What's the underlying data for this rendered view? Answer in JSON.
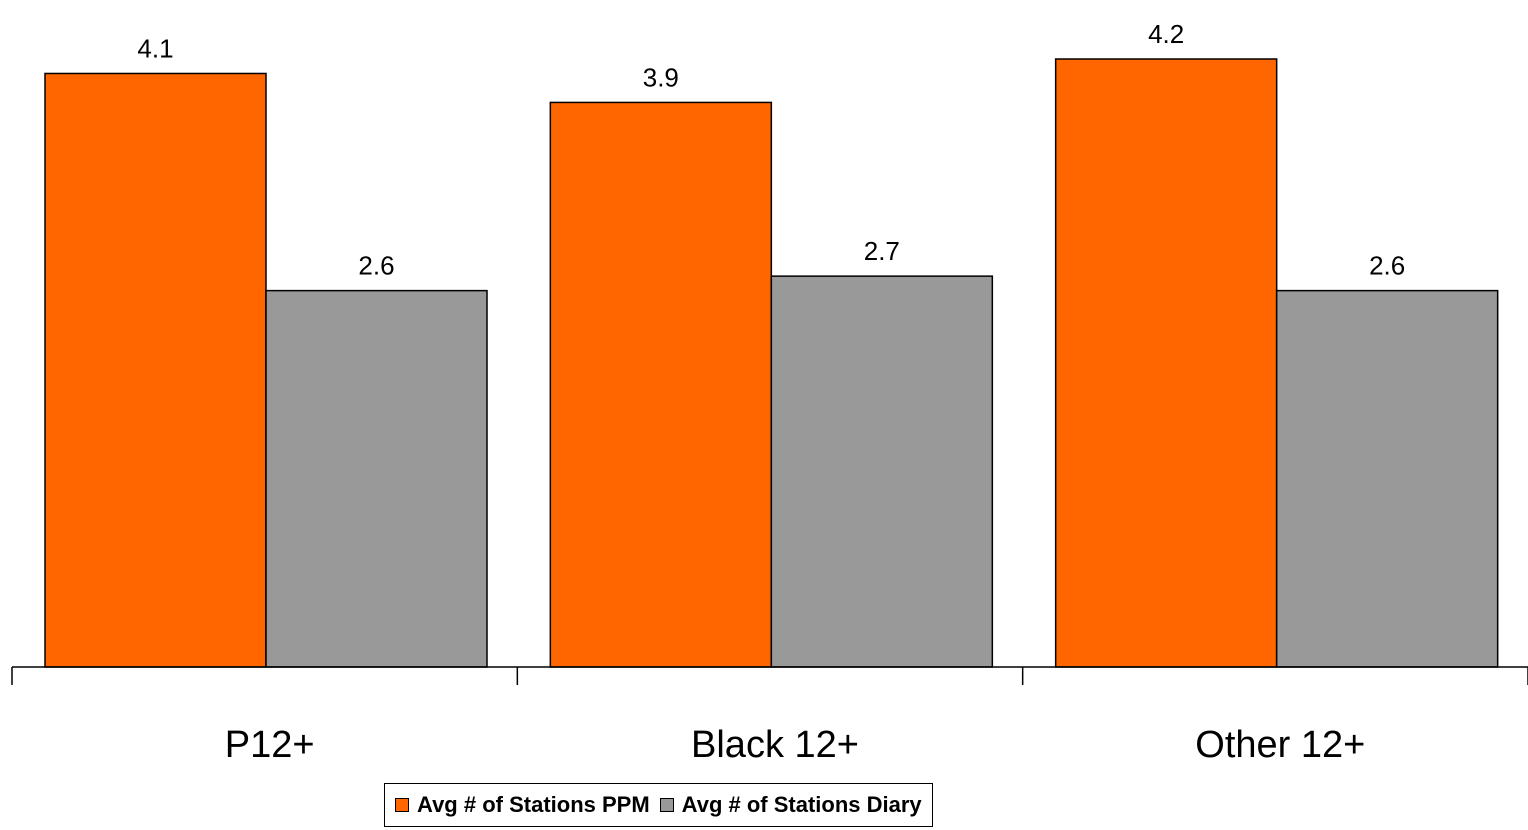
{
  "chart_data": {
    "type": "bar",
    "categories": [
      "P12+",
      "Black 12+",
      "Other 12+"
    ],
    "series": [
      {
        "name": "Avg # of Stations PPM",
        "values": [
          4.1,
          3.9,
          4.2
        ],
        "color": "#FF6600"
      },
      {
        "name": "Avg # of Stations Diary",
        "values": [
          2.6,
          2.7,
          2.6
        ],
        "color": "#999999"
      }
    ],
    "title": "",
    "xlabel": "",
    "ylabel": "",
    "ylim": [
      0,
      4.2
    ],
    "grid": false,
    "legend": "bottom",
    "data_labels": true
  }
}
